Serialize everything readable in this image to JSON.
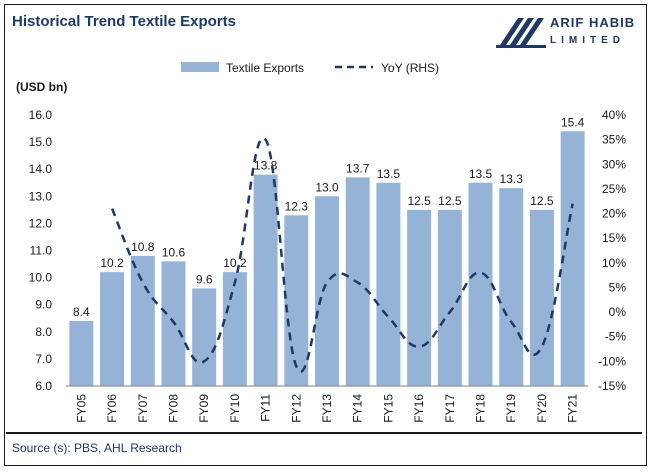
{
  "header": {
    "title": "Historical Trend Textile Exports",
    "logo_name": "ARIF HABIB",
    "logo_sub": "LIMITED"
  },
  "footer": {
    "source": "Source (s): PBS, AHL Research"
  },
  "colors": {
    "bar": "#95B3D7",
    "line": "#1F3864",
    "title": "#1F3864"
  },
  "chart_data": {
    "type": "bar",
    "categories": [
      "FY05",
      "FY06",
      "FY07",
      "FY08",
      "FY09",
      "FY10",
      "FY11",
      "FY12",
      "FY13",
      "FY14",
      "FY15",
      "FY16",
      "FY17",
      "FY18",
      "FY19",
      "FY20",
      "FY21"
    ],
    "series": [
      {
        "name": "Textile Exports",
        "type": "bar",
        "axis": "left",
        "values": [
          8.4,
          10.2,
          10.8,
          10.6,
          9.6,
          10.2,
          13.8,
          12.3,
          13.0,
          13.7,
          13.5,
          12.5,
          12.5,
          13.5,
          13.3,
          12.5,
          15.4
        ],
        "labels": [
          "8.4",
          "10.2",
          "10.8",
          "10.6",
          "9.6",
          "10.2",
          "13.8",
          "12.3",
          "13.0",
          "13.7",
          "13.5",
          "12.5",
          "12.5",
          "13.5",
          "13.3",
          "12.5",
          "15.4"
        ]
      },
      {
        "name": "YoY (RHS)",
        "type": "line",
        "style": "dashed",
        "axis": "right",
        "values": [
          null,
          21,
          6,
          -2,
          -10,
          6,
          35,
          -11,
          6,
          6,
          -1,
          -7,
          0,
          8,
          -2,
          -7,
          22
        ]
      }
    ],
    "ylabel": "(USD bn)",
    "ylim": [
      6.0,
      16.0
    ],
    "yticks": [
      "6.0",
      "7.0",
      "8.0",
      "9.0",
      "10.0",
      "11.0",
      "12.0",
      "13.0",
      "14.0",
      "15.0",
      "16.0"
    ],
    "y2lim": [
      -15,
      40
    ],
    "y2ticks": [
      "-15%",
      "-10%",
      "-5%",
      "0%",
      "5%",
      "10%",
      "15%",
      "20%",
      "25%",
      "30%",
      "35%",
      "40%"
    ],
    "legend": "top-center",
    "grid": false
  }
}
